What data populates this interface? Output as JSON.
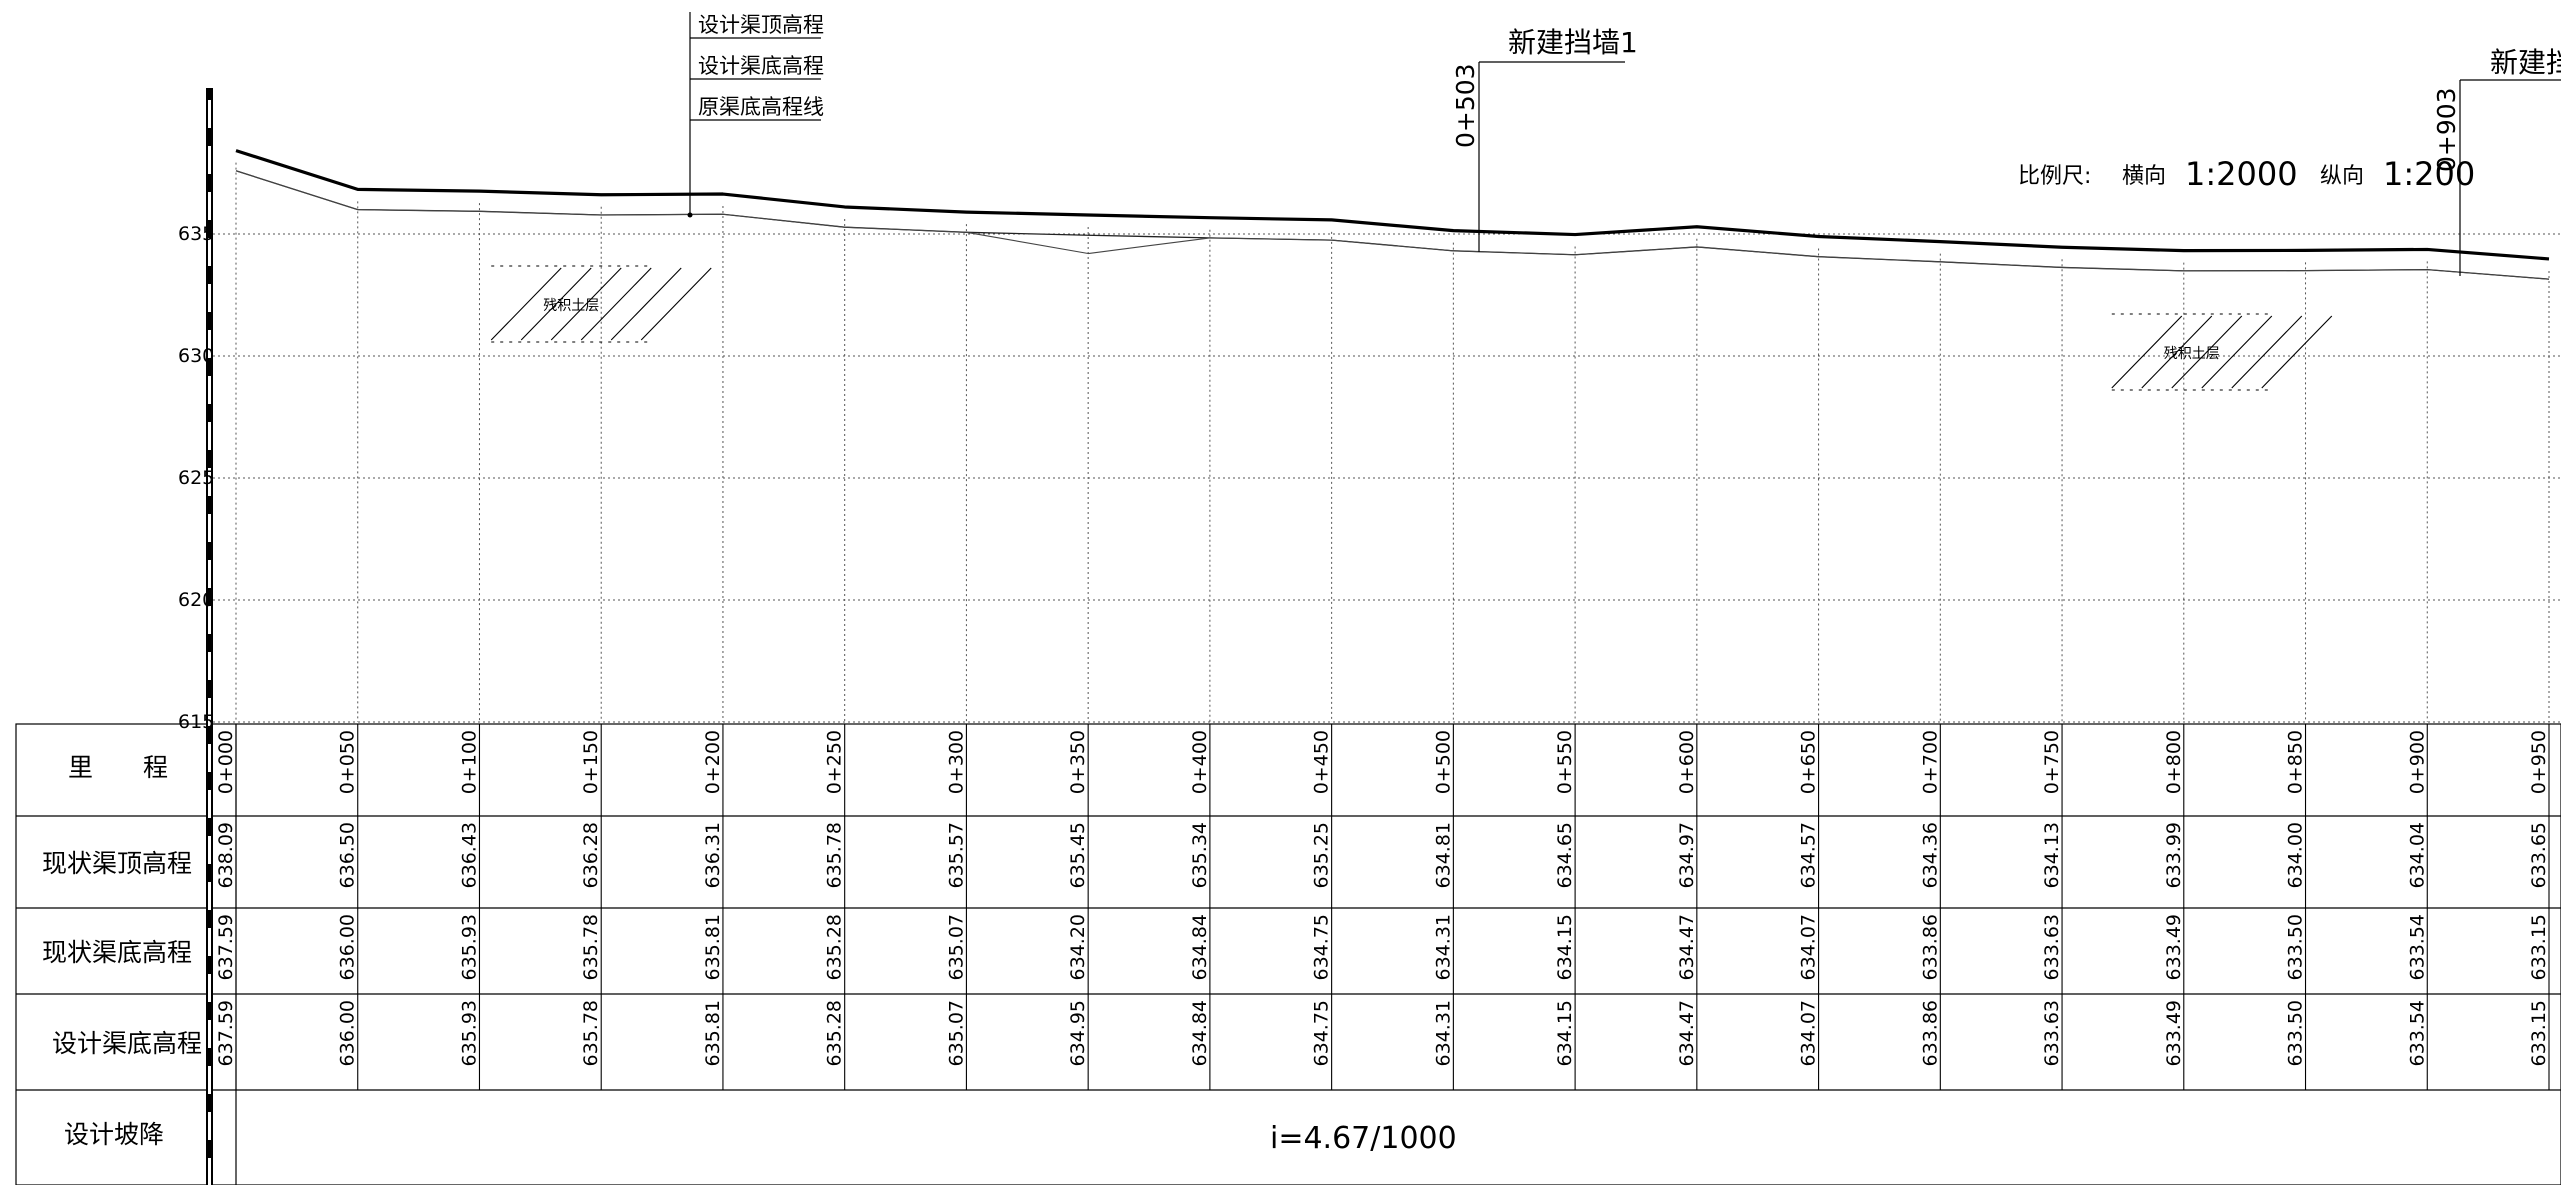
{
  "callouts": {
    "design_top": "设计渠顶高程",
    "design_bottom": "设计渠底高程",
    "original_bottom": "原渠底高程线"
  },
  "walls": [
    {
      "station_label": "0+503",
      "title": "新建挡墙1"
    },
    {
      "station_label": "0+903",
      "title": "新建挡"
    }
  ],
  "scale": {
    "label": "比例尺:",
    "h_label": "横向",
    "h_value": "1:2000",
    "v_label": "纵向",
    "v_value": "1:200"
  },
  "hatch_label": "残积土层",
  "y_ticks": [
    "635",
    "630",
    "625",
    "620",
    "615"
  ],
  "table": {
    "row_labels": {
      "station": "里　　程",
      "current_top": "现状渠顶高程",
      "current_bottom": "现状渠底高程",
      "design_bottom": "设计渠底高程",
      "slope": "设计坡降"
    },
    "stations": [
      "0+000",
      "0+050",
      "0+100",
      "0+150",
      "0+200",
      "0+250",
      "0+300",
      "0+350",
      "0+400",
      "0+450",
      "0+500",
      "0+550",
      "0+600",
      "0+650",
      "0+700",
      "0+750",
      "0+800",
      "0+850",
      "0+900",
      "0+950"
    ],
    "current_top": [
      "638.09",
      "636.50",
      "636.43",
      "636.28",
      "636.31",
      "635.78",
      "635.57",
      "635.45",
      "635.34",
      "635.25",
      "634.81",
      "634.65",
      "634.97",
      "634.57",
      "634.36",
      "634.13",
      "633.99",
      "634.00",
      "634.04",
      "633.65"
    ],
    "current_bottom": [
      "637.59",
      "636.00",
      "635.93",
      "635.78",
      "635.81",
      "635.28",
      "635.07",
      "634.20",
      "634.84",
      "634.75",
      "634.31",
      "634.15",
      "634.47",
      "634.07",
      "633.86",
      "633.63",
      "633.49",
      "633.50",
      "633.54",
      "633.15"
    ],
    "design_bottom": [
      "637.59",
      "636.00",
      "635.93",
      "635.78",
      "635.81",
      "635.28",
      "635.07",
      "634.95",
      "634.84",
      "634.75",
      "634.31",
      "634.15",
      "634.47",
      "634.07",
      "633.86",
      "633.63",
      "633.49",
      "633.50",
      "633.54",
      "633.15"
    ],
    "slope_text": "i=4.67/1000"
  },
  "chart_data": {
    "type": "line",
    "x": [
      0,
      50,
      100,
      150,
      200,
      250,
      300,
      350,
      400,
      450,
      500,
      550,
      600,
      650,
      700,
      750,
      800,
      850,
      900,
      950
    ],
    "series": [
      {
        "name": "设计渠顶高程",
        "values": [
          638.09,
          636.5,
          636.43,
          636.28,
          636.31,
          635.78,
          635.57,
          635.45,
          635.34,
          635.25,
          634.81,
          634.65,
          634.97,
          634.57,
          634.36,
          634.13,
          633.99,
          634.0,
          634.04,
          633.65
        ]
      },
      {
        "name": "设计渠底高程",
        "values": [
          637.59,
          636.0,
          635.93,
          635.78,
          635.81,
          635.28,
          635.07,
          634.95,
          634.84,
          634.75,
          634.31,
          634.15,
          634.47,
          634.07,
          633.86,
          633.63,
          633.49,
          633.5,
          633.54,
          633.15
        ]
      },
      {
        "name": "原渠底高程线",
        "values": [
          637.59,
          636.0,
          635.93,
          635.78,
          635.81,
          635.28,
          635.07,
          634.2,
          634.84,
          634.75,
          634.31,
          634.15,
          634.47,
          634.07,
          633.86,
          633.63,
          633.49,
          633.5,
          633.54,
          633.15
        ]
      }
    ],
    "ylim": [
      615,
      640
    ],
    "y_ticks": [
      635,
      630,
      625,
      620,
      615
    ],
    "grid": true
  }
}
